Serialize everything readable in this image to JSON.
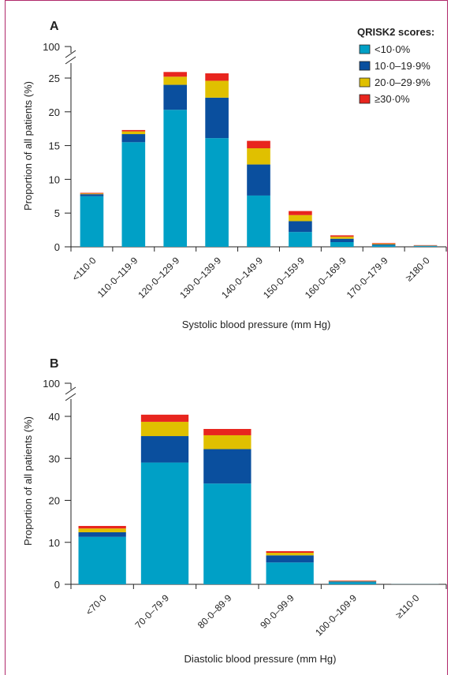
{
  "legend": {
    "title": "QRISK2 scores:",
    "items": [
      {
        "label": "<10·0%",
        "color": "#00a0c6"
      },
      {
        "label": "10·0–19·9%",
        "color": "#0a4f9e"
      },
      {
        "label": "20·0–29·9%",
        "color": "#e0c000"
      },
      {
        "label": "≥30·0%",
        "color": "#e8251e"
      }
    ]
  },
  "chart_data": [
    {
      "type": "bar",
      "stacked": true,
      "panel": "A",
      "xlabel": "Systolic blood pressure (mm Hg)",
      "ylabel": "Proportion of all patients (%)",
      "ylim": [
        0,
        25
      ],
      "yticks": [
        "0",
        "5",
        "10",
        "15",
        "20",
        "25"
      ],
      "axis_break_label": "100",
      "categories": [
        "<110·0",
        "110·0–119·9",
        "120·0–129·9",
        "130·0–139·9",
        "140·0–149·9",
        "150·0–159·9",
        "160·0–169·9",
        "170·0–179·9",
        "≥180·0"
      ],
      "series": [
        {
          "name": "<10·0%",
          "values": [
            7.5,
            15.5,
            20.3,
            16.1,
            7.6,
            2.2,
            0.7,
            0.2,
            0.1
          ]
        },
        {
          "name": "10·0–19·9%",
          "values": [
            0.3,
            1.2,
            3.7,
            6.0,
            4.6,
            1.6,
            0.5,
            0.15,
            0.06
          ]
        },
        {
          "name": "20·0–29·9%",
          "values": [
            0.1,
            0.4,
            1.2,
            2.5,
            2.4,
            0.9,
            0.3,
            0.1,
            0.04
          ]
        },
        {
          "name": "≥30·0%",
          "values": [
            0.1,
            0.2,
            0.7,
            1.1,
            1.1,
            0.6,
            0.2,
            0.1,
            0.05
          ]
        }
      ]
    },
    {
      "type": "bar",
      "stacked": true,
      "panel": "B",
      "xlabel": "Diastolic blood pressure (mm Hg)",
      "ylabel": "Proportion of all patients (%)",
      "ylim": [
        0,
        40
      ],
      "yticks": [
        "0",
        "10",
        "20",
        "30",
        "40"
      ],
      "axis_break_label": "100",
      "categories": [
        "<70·0",
        "70·0–79·9",
        "80·0–89·9",
        "90·0–99·9",
        "100·0–109·9",
        "≥110·0"
      ],
      "series": [
        {
          "name": "<10·0%",
          "values": [
            11.3,
            29.0,
            24.0,
            5.2,
            0.5,
            0.05
          ]
        },
        {
          "name": "10·0–19·9%",
          "values": [
            1.1,
            6.3,
            8.2,
            1.7,
            0.2,
            0.02
          ]
        },
        {
          "name": "20·0–29·9%",
          "values": [
            0.9,
            3.4,
            3.3,
            0.6,
            0.1,
            0.01
          ]
        },
        {
          "name": "≥30·0%",
          "values": [
            0.6,
            1.7,
            1.5,
            0.4,
            0.1,
            0.01
          ]
        }
      ]
    }
  ]
}
